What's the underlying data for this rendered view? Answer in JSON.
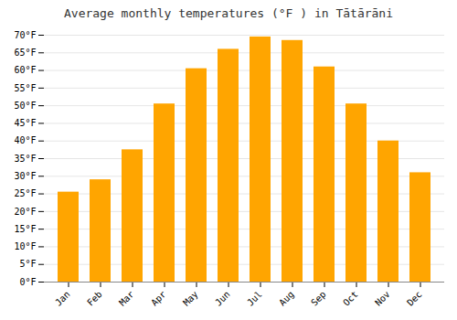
{
  "chart_data": {
    "type": "bar",
    "title": "Average monthly temperatures (°F ) in Tātārāni",
    "categories": [
      "Jan",
      "Feb",
      "Mar",
      "Apr",
      "May",
      "Jun",
      "Jul",
      "Aug",
      "Sep",
      "Oct",
      "Nov",
      "Dec"
    ],
    "values": [
      25.5,
      29.0,
      37.5,
      50.5,
      60.5,
      66.0,
      69.5,
      68.5,
      61.0,
      50.5,
      40.0,
      31.0
    ],
    "color": "#FFA500",
    "ylim": [
      0,
      70
    ],
    "yticks": [
      {
        "value": 0,
        "label": "0°F"
      },
      {
        "value": 5,
        "label": "5°F"
      },
      {
        "value": 10,
        "label": "10°F"
      },
      {
        "value": 15,
        "label": "15°F"
      },
      {
        "value": 20,
        "label": "20°F"
      },
      {
        "value": 25,
        "label": "25°F"
      },
      {
        "value": 30,
        "label": "30°F"
      },
      {
        "value": 35,
        "label": "35°F"
      },
      {
        "value": 40,
        "label": "40°F"
      },
      {
        "value": 45,
        "label": "45°F"
      },
      {
        "value": 50,
        "label": "50°F"
      },
      {
        "value": 55,
        "label": "55°F"
      },
      {
        "value": 60,
        "label": "60°F"
      },
      {
        "value": 65,
        "label": "65°F"
      },
      {
        "value": 70,
        "label": "70°F"
      }
    ],
    "grid": true
  }
}
